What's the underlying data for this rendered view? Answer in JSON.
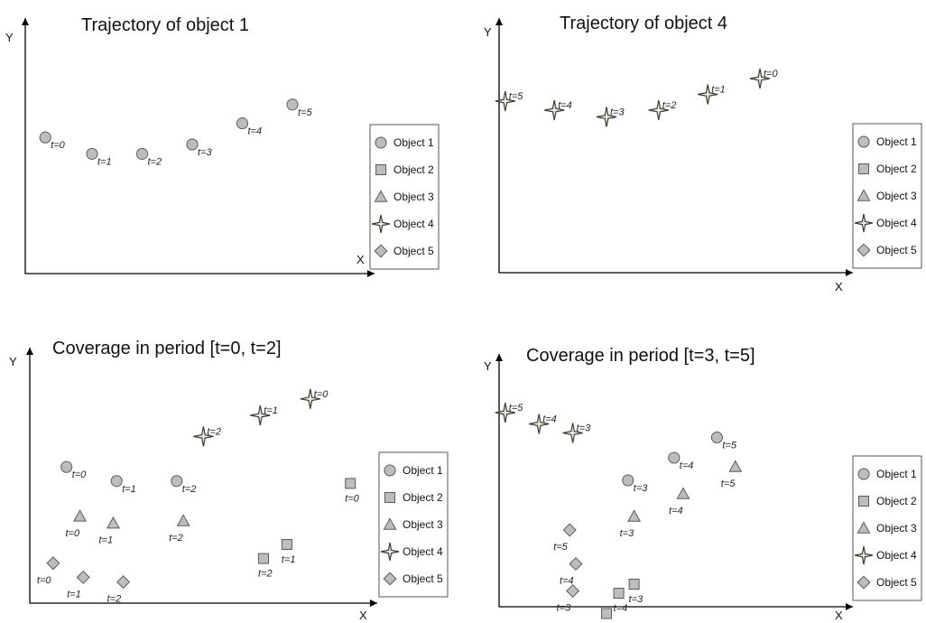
{
  "colors": {
    "marker_fill": "#bdbdbd",
    "marker_stroke": "#5a5a5a",
    "star_core": "#e9ecd8",
    "axis": "#000000"
  },
  "legend_entries": [
    {
      "name": "Object 1",
      "shape": "circle"
    },
    {
      "name": "Object 2",
      "shape": "square"
    },
    {
      "name": "Object 3",
      "shape": "triangle"
    },
    {
      "name": "Object 4",
      "shape": "star"
    },
    {
      "name": "Object 5",
      "shape": "diamond"
    }
  ],
  "chart_data": [
    {
      "type": "scatter",
      "title": "Trajectory of object 1",
      "xlabel": "X",
      "ylabel": "Y",
      "legend_placement": "bottom-right",
      "series": [
        {
          "object": "Object 1",
          "shape": "circle",
          "points": [
            {
              "x": 6,
              "y": 58,
              "label": "t=0"
            },
            {
              "x": 20,
              "y": 51,
              "label": "t=1"
            },
            {
              "x": 35,
              "y": 51,
              "label": "t=2"
            },
            {
              "x": 50,
              "y": 55,
              "label": "t=3"
            },
            {
              "x": 65,
              "y": 64,
              "label": "t=4"
            },
            {
              "x": 80,
              "y": 72,
              "label": "t=5"
            }
          ]
        }
      ]
    },
    {
      "type": "scatter",
      "title": "Trajectory of object 4",
      "xlabel": "X",
      "ylabel": "Y",
      "legend_placement": "bottom-right",
      "series": [
        {
          "object": "Object 4",
          "shape": "star",
          "points": [
            {
              "x": 85,
              "y": 86,
              "label": "t=0"
            },
            {
              "x": 68,
              "y": 79,
              "label": "t=1"
            },
            {
              "x": 52,
              "y": 72,
              "label": "t=2"
            },
            {
              "x": 35,
              "y": 69,
              "label": "t=3"
            },
            {
              "x": 18,
              "y": 72,
              "label": "t=4"
            },
            {
              "x": 2,
              "y": 76,
              "label": "t=5"
            }
          ]
        }
      ]
    },
    {
      "type": "scatter",
      "title": "Coverage in period [t=0, t=2]",
      "xlabel": "X",
      "ylabel": "Y",
      "legend_placement": "bottom-right",
      "series": [
        {
          "object": "Object 1",
          "shape": "circle",
          "points": [
            {
              "x": 11,
              "y": 58,
              "label": "t=0"
            },
            {
              "x": 26,
              "y": 52,
              "label": "t=1"
            },
            {
              "x": 44,
              "y": 52,
              "label": "t=2"
            }
          ]
        },
        {
          "object": "Object 2",
          "shape": "square",
          "points": [
            {
              "x": 96,
              "y": 51,
              "label": "t=0"
            },
            {
              "x": 77,
              "y": 25,
              "label": "t=1"
            },
            {
              "x": 70,
              "y": 19,
              "label": "t=2"
            }
          ]
        },
        {
          "object": "Object 3",
          "shape": "triangle",
          "points": [
            {
              "x": 15,
              "y": 37,
              "label": "t=0"
            },
            {
              "x": 25,
              "y": 34,
              "label": "t=1"
            },
            {
              "x": 46,
              "y": 35,
              "label": "t=2"
            }
          ]
        },
        {
          "object": "Object 4",
          "shape": "star",
          "points": [
            {
              "x": 84,
              "y": 87,
              "label": "t=0"
            },
            {
              "x": 69,
              "y": 80,
              "label": "t=1"
            },
            {
              "x": 52,
              "y": 71,
              "label": "t=2"
            }
          ]
        },
        {
          "object": "Object 5",
          "shape": "diamond",
          "points": [
            {
              "x": 7,
              "y": 17,
              "label": "t=0"
            },
            {
              "x": 16,
              "y": 11,
              "label": "t=1"
            },
            {
              "x": 28,
              "y": 9,
              "label": "t=2"
            }
          ]
        }
      ]
    },
    {
      "type": "scatter",
      "title": "Coverage in period [t=3, t=5]",
      "xlabel": "X",
      "ylabel": "Y",
      "legend_placement": "bottom-right",
      "series": [
        {
          "object": "Object 1",
          "shape": "circle",
          "points": [
            {
              "x": 42,
              "y": 56,
              "label": "t=3"
            },
            {
              "x": 57,
              "y": 66,
              "label": "t=4"
            },
            {
              "x": 71,
              "y": 75,
              "label": "t=5"
            }
          ]
        },
        {
          "object": "Object 2",
          "shape": "square",
          "points": [
            {
              "x": 44,
              "y": 10,
              "label": "t=3"
            },
            {
              "x": 39,
              "y": 6,
              "label": "t=4"
            },
            {
              "x": 35,
              "y": -3,
              "label": "t=5"
            }
          ]
        },
        {
          "object": "Object 3",
          "shape": "triangle",
          "points": [
            {
              "x": 44,
              "y": 40,
              "label": "t=3"
            },
            {
              "x": 60,
              "y": 50,
              "label": "t=4"
            },
            {
              "x": 77,
              "y": 62,
              "label": "t=5"
            }
          ]
        },
        {
          "object": "Object 4",
          "shape": "star",
          "points": [
            {
              "x": 24,
              "y": 77,
              "label": "t=3"
            },
            {
              "x": 13,
              "y": 81,
              "label": "t=4"
            },
            {
              "x": 2,
              "y": 86,
              "label": "t=5"
            }
          ]
        },
        {
          "object": "Object 5",
          "shape": "diamond",
          "points": [
            {
              "x": 23,
              "y": 34,
              "label": "t=5"
            },
            {
              "x": 25,
              "y": 19,
              "label": "t=4"
            },
            {
              "x": 24,
              "y": 7,
              "label": "t=3"
            }
          ]
        }
      ]
    }
  ]
}
